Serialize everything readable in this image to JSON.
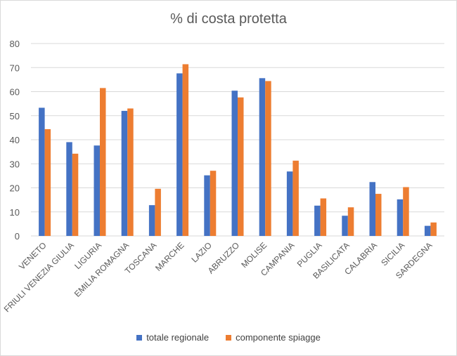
{
  "chart_data": {
    "type": "bar",
    "title": "% di costa protetta",
    "xlabel": "",
    "ylabel": "",
    "ylim": [
      0,
      80
    ],
    "yticks": [
      0,
      10,
      20,
      30,
      40,
      50,
      60,
      70,
      80
    ],
    "grid": true,
    "legend_position": "bottom",
    "categories": [
      "VENETO",
      "FRIULI VENEZIA GIULIA",
      "LIGURIA",
      "EMILIA ROMAGNA",
      "TOSCANA",
      "MARCHE",
      "LAZIO",
      "ABRUZZO",
      "MOLISE",
      "CAMPANIA",
      "PUGLIA",
      "BASILICATA",
      "CALABRIA",
      "SICILIA",
      "SARDEGNA"
    ],
    "series": [
      {
        "name": "totale regionale",
        "color": "#4472c4",
        "values": [
          53.3,
          39,
          37.6,
          52,
          12.8,
          67.6,
          25.2,
          60.4,
          65.6,
          26.8,
          12.6,
          8.4,
          22.4,
          15.2,
          4.2
        ]
      },
      {
        "name": "componente spiagge",
        "color": "#ed7d31",
        "values": [
          44.4,
          34.2,
          61.5,
          53,
          19.6,
          71.4,
          27.1,
          57.6,
          64.4,
          31.3,
          15.6,
          11.9,
          17.5,
          20.3,
          5.6
        ]
      }
    ]
  },
  "colors": {
    "gridline": "#d9d9d9",
    "axis_text": "#595959",
    "title_text": "#595959"
  }
}
